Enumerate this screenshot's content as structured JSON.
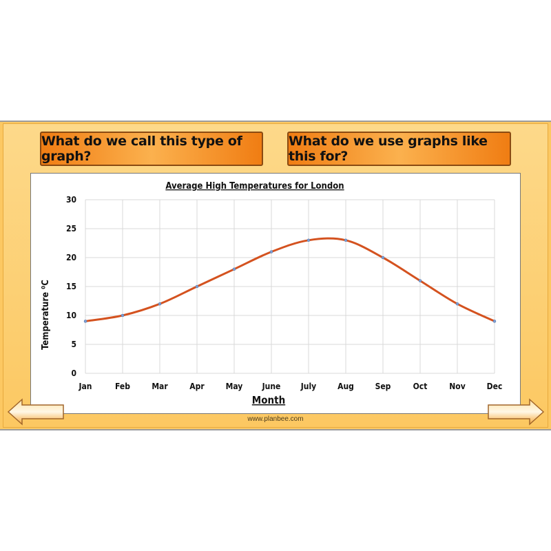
{
  "slide": {
    "question_left": "What do we call this type of graph?",
    "question_right": "What do we use graphs like this for?",
    "footer_url": "www.planbee.com"
  },
  "colors": {
    "slide_bg": "#fcc862",
    "button_orange": "#f07d13",
    "line": "#d4521f",
    "marker": "#7d9fd3",
    "grid": "#d8d8d8"
  },
  "icons": {
    "left": "arrow-left-icon",
    "right": "arrow-right-icon"
  },
  "chart_data": {
    "type": "line",
    "title": "Average High Temperatures for London",
    "xlabel": "Month",
    "ylabel": "Temperature ⁰C",
    "categories": [
      "Jan",
      "Feb",
      "Mar",
      "Apr",
      "May",
      "June",
      "July",
      "Aug",
      "Sep",
      "Oct",
      "Nov",
      "Dec"
    ],
    "values": [
      9,
      10,
      12,
      15,
      18,
      21,
      23,
      23,
      20,
      16,
      12,
      9
    ],
    "ylim": [
      0,
      30
    ],
    "yticks": [
      0,
      5,
      10,
      15,
      20,
      25,
      30
    ],
    "grid": true,
    "smooth": true,
    "legend": "none"
  }
}
